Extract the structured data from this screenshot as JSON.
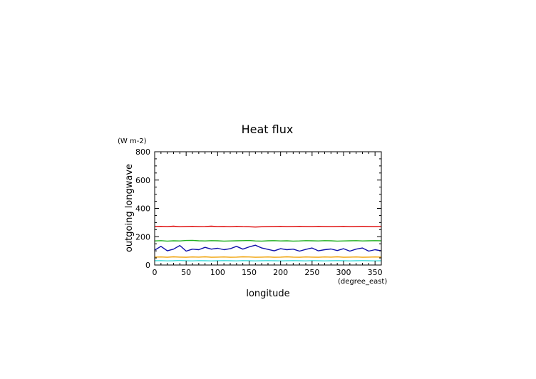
{
  "chart_data": {
    "type": "line",
    "title": "Heat flux",
    "xlabel": "longitude",
    "ylabel": "outgoing longwave",
    "x_unit": "(degree_east)",
    "y_unit": "(W m-2)",
    "xlim": [
      0,
      360
    ],
    "ylim": [
      0,
      800
    ],
    "x_ticks": [
      "0",
      "50",
      "100",
      "150",
      "200",
      "250",
      "300",
      "350"
    ],
    "y_ticks": [
      "0",
      "200",
      "400",
      "600",
      "800"
    ],
    "grid": false,
    "x": [
      0,
      10,
      20,
      30,
      40,
      50,
      60,
      70,
      80,
      90,
      100,
      110,
      120,
      130,
      140,
      150,
      160,
      170,
      180,
      190,
      200,
      210,
      220,
      230,
      240,
      250,
      260,
      270,
      280,
      290,
      300,
      310,
      320,
      330,
      340,
      350,
      360
    ],
    "series": [
      {
        "color": "#dd0000",
        "values": [
          272,
          273,
          271,
          274,
          270,
          272,
          273,
          271,
          272,
          274,
          271,
          272,
          270,
          273,
          271,
          270,
          268,
          270,
          271,
          272,
          273,
          271,
          272,
          273,
          272,
          271,
          273,
          272,
          271,
          272,
          273,
          271,
          272,
          273,
          272,
          271,
          272
        ]
      },
      {
        "color": "#22b022",
        "values": [
          170,
          172,
          169,
          171,
          170,
          173,
          174,
          171,
          170,
          172,
          171,
          169,
          170,
          171,
          172,
          173,
          170,
          169,
          171,
          172,
          170,
          171,
          169,
          170,
          172,
          171,
          170,
          172,
          171,
          169,
          170,
          171,
          172,
          170,
          171,
          172,
          171
        ]
      },
      {
        "color": "#1010aa",
        "values": [
          105,
          132,
          100,
          112,
          138,
          98,
          112,
          108,
          125,
          112,
          118,
          108,
          115,
          132,
          112,
          128,
          140,
          120,
          110,
          100,
          115,
          108,
          112,
          98,
          110,
          120,
          100,
          108,
          113,
          102,
          115,
          98,
          112,
          120,
          98,
          108,
          100
        ]
      },
      {
        "color": "#f0a000",
        "values": [
          56,
          57,
          55,
          58,
          56,
          55,
          57,
          56,
          58,
          55,
          56,
          57,
          55,
          56,
          58,
          57,
          55,
          56,
          57,
          55,
          56,
          58,
          56,
          55,
          57,
          56,
          55,
          57,
          56,
          58,
          55,
          56,
          57,
          55,
          56,
          57,
          56
        ]
      },
      {
        "color": "#40dcdc",
        "values": [
          30,
          31,
          29,
          30,
          32,
          30,
          29,
          31,
          30,
          29,
          30,
          31,
          30,
          29,
          31,
          30,
          29,
          30,
          31,
          30,
          29,
          30,
          31,
          30,
          29,
          31,
          30,
          29,
          30,
          31,
          30,
          29,
          30,
          31,
          30,
          29,
          30
        ]
      }
    ]
  }
}
